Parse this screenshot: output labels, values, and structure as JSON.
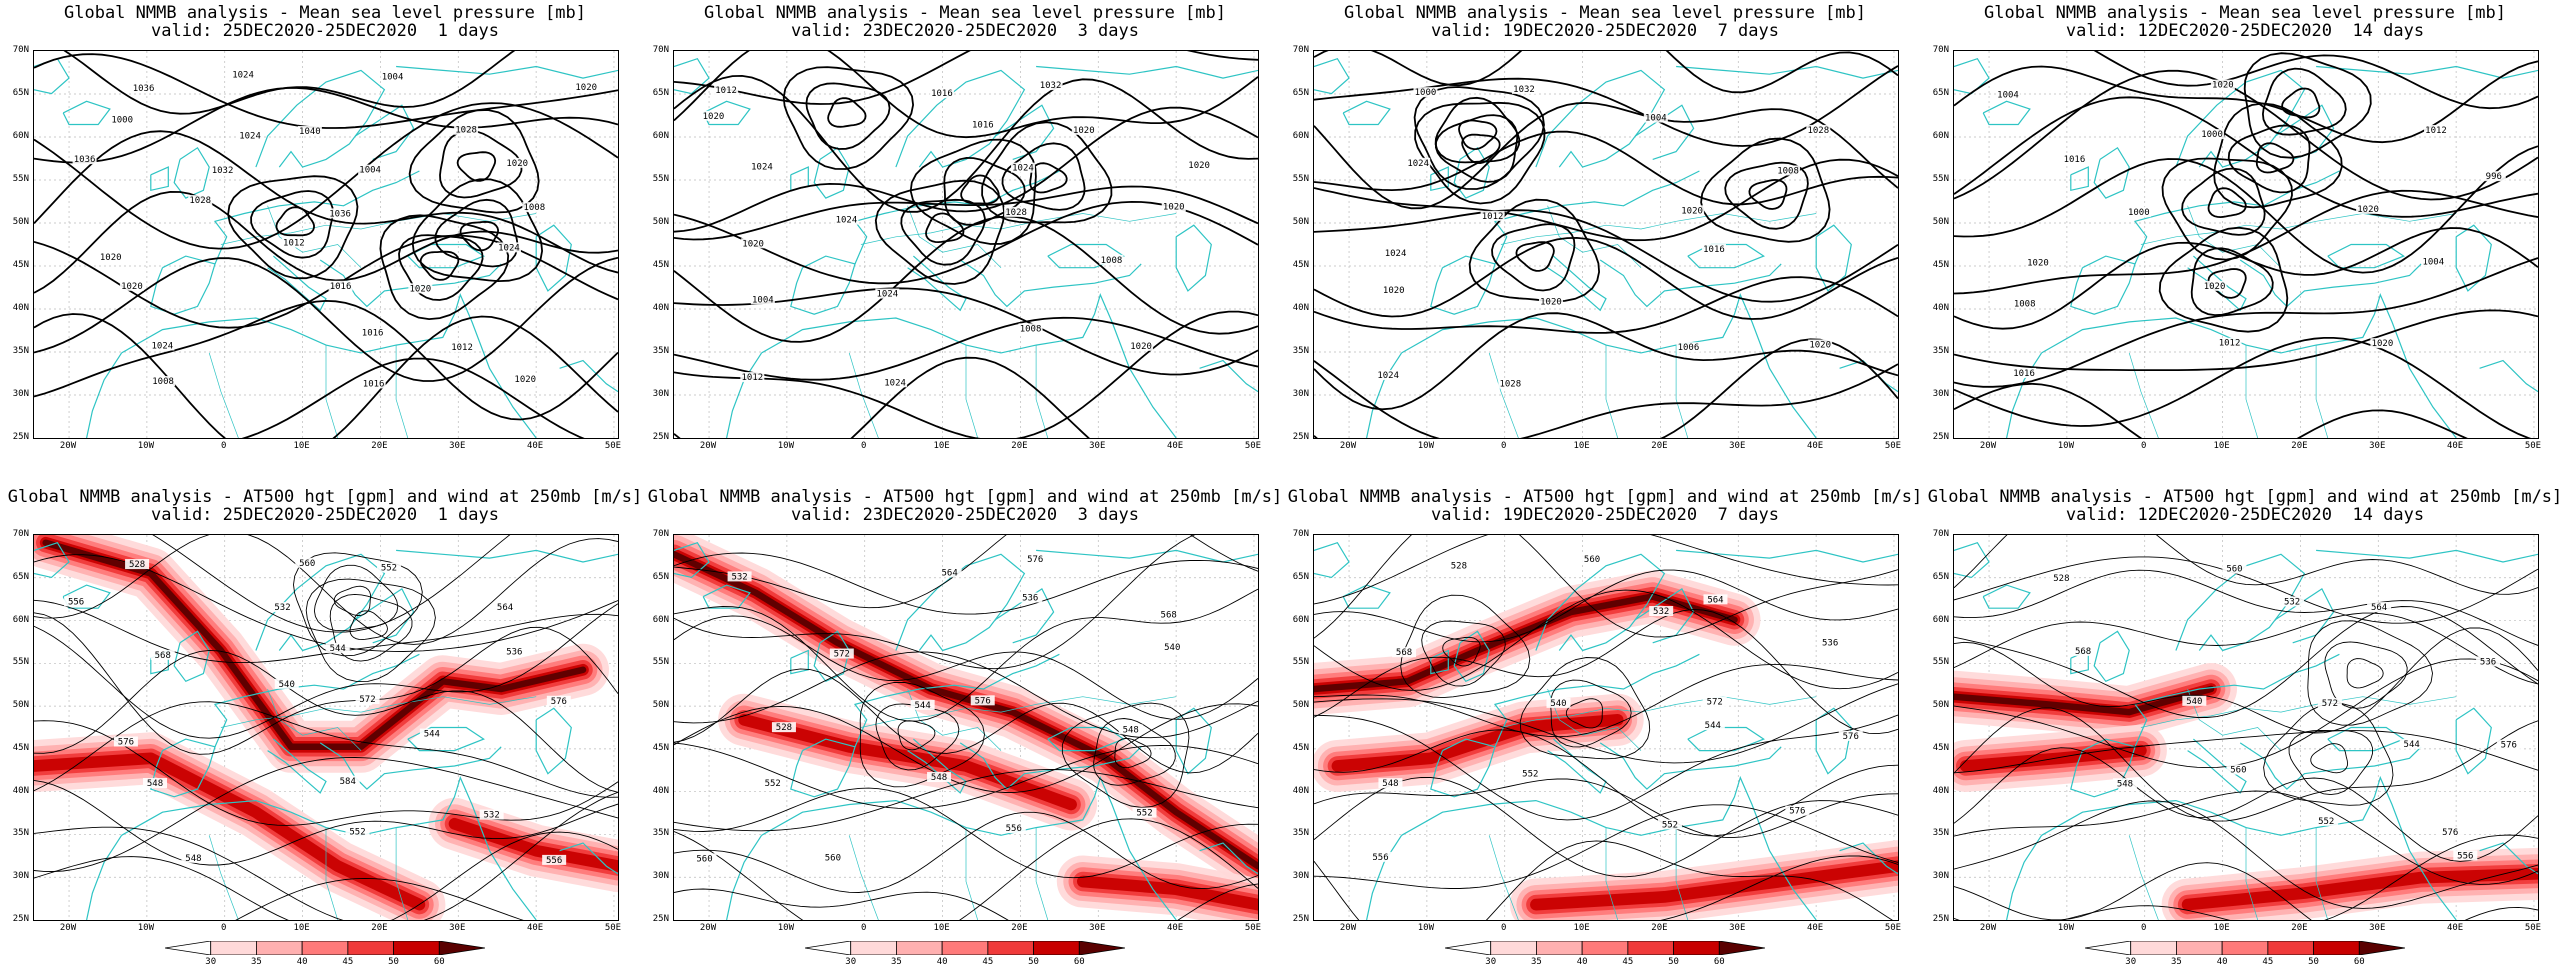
{
  "panels": [
    {
      "title": "Global NMMB analysis - Mean sea level pressure [mb]",
      "valid": "valid: 25DEC2020-25DEC2020  1 days",
      "kind": "mslp",
      "seed": 1,
      "contour_labels": [
        "1036",
        "1040",
        "1036",
        "1028",
        "1024",
        "1020",
        "1016",
        "1020",
        "1024",
        "1028",
        "1032",
        "1036",
        "1020",
        "1016",
        "1012",
        "1008",
        "1004",
        "1000",
        "1004",
        "1008",
        "1012",
        "1020",
        "1024",
        "1016",
        "1020",
        "1024",
        "1020"
      ]
    },
    {
      "title": "Global NMMB analysis - Mean sea level pressure [mb]",
      "valid": "valid: 23DEC2020-25DEC2020  3 days",
      "kind": "mslp",
      "seed": 2,
      "contour_labels": [
        "1012",
        "1016",
        "1020",
        "1024",
        "1008",
        "1004",
        "1008",
        "1012",
        "1016",
        "1020",
        "1024",
        "1028",
        "1020",
        "1024",
        "1020",
        "1024",
        "1032",
        "1020",
        "1024",
        "1020"
      ]
    },
    {
      "title": "Global NMMB analysis - Mean sea level pressure [mb]",
      "valid": "valid: 19DEC2020-25DEC2020  7 days",
      "kind": "mslp",
      "seed": 3,
      "contour_labels": [
        "1000",
        "1004",
        "1008",
        "1012",
        "1016",
        "1020",
        "1006",
        "1024",
        "1032",
        "1028",
        "1024",
        "1020",
        "1024",
        "1020",
        "1020",
        "1028"
      ]
    },
    {
      "title": "Global NMMB analysis - Mean sea level pressure [mb]",
      "valid": "valid: 12DEC2020-25DEC2020  14 days",
      "kind": "mslp",
      "seed": 4,
      "contour_labels": [
        "1004",
        "1000",
        "996",
        "1000",
        "1004",
        "1008",
        "1012",
        "1016",
        "1020",
        "1012",
        "1016",
        "1020",
        "1020",
        "1020",
        "1020"
      ]
    },
    {
      "title": "Global NMMB analysis - AT500 hgt [gpm] and wind at 250mb [m/s]",
      "valid": "valid: 25DEC2020-25DEC2020  1 days",
      "kind": "hgt",
      "seed": 5,
      "contour_labels": [
        "528",
        "532",
        "536",
        "540",
        "544",
        "548",
        "552",
        "556",
        "560",
        "564",
        "568",
        "572",
        "576",
        "584",
        "532",
        "548",
        "552",
        "556",
        "544",
        "576"
      ]
    },
    {
      "title": "Global NMMB analysis - AT500 hgt [gpm] and wind at 250mb [m/s]",
      "valid": "valid: 23DEC2020-25DEC2020  3 days",
      "kind": "hgt",
      "seed": 6,
      "contour_labels": [
        "532",
        "536",
        "540",
        "544",
        "548",
        "552",
        "556",
        "560",
        "564",
        "568",
        "572",
        "576",
        "528",
        "548",
        "552",
        "560",
        "576"
      ]
    },
    {
      "title": "Global NMMB analysis - AT500 hgt [gpm] and wind at 250mb [m/s]",
      "valid": "valid: 19DEC2020-25DEC2020  7 days",
      "kind": "hgt",
      "seed": 7,
      "contour_labels": [
        "528",
        "532",
        "536",
        "540",
        "544",
        "548",
        "552",
        "556",
        "560",
        "564",
        "568",
        "572",
        "576",
        "552",
        "576"
      ]
    },
    {
      "title": "Global NMMB analysis - AT500 hgt [gpm] and wind at 250mb [m/s]",
      "valid": "valid: 12DEC2020-25DEC2020  14 days",
      "kind": "hgt",
      "seed": 8,
      "contour_labels": [
        "528",
        "532",
        "536",
        "540",
        "544",
        "548",
        "552",
        "556",
        "560",
        "564",
        "568",
        "572",
        "576",
        "560",
        "576"
      ]
    }
  ],
  "lat_labels": [
    "70N",
    "65N",
    "60N",
    "55N",
    "50N",
    "45N",
    "40N",
    "35N",
    "30N",
    "25N"
  ],
  "lon_labels": [
    "20W",
    "10W",
    "0",
    "10E",
    "20E",
    "30E",
    "40E",
    "50E"
  ],
  "colorbar_ticks": [
    "30",
    "35",
    "40",
    "45",
    "50",
    "60"
  ],
  "colors": {
    "coast": "#2ec4c4",
    "contour": "#000000",
    "jet_levels": [
      "#ffd9d9",
      "#ffb0b0",
      "#ff7a7a",
      "#f03a3a",
      "#c80000",
      "#5a0000"
    ]
  }
}
